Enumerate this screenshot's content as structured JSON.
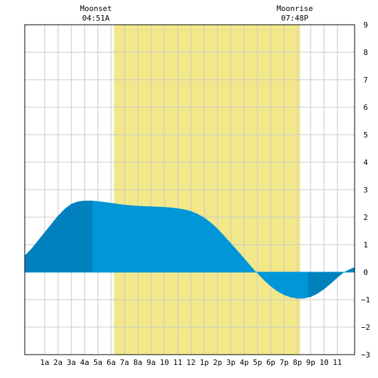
{
  "chart_data": {
    "type": "area",
    "moonset": {
      "label": "Moonset",
      "time": "04:51A",
      "hour": 4.85
    },
    "moonrise": {
      "label": "Moonrise",
      "time": "07:48P",
      "hour": 19.8
    },
    "daylight": {
      "start_hour": 6.2,
      "end_hour": 20.2
    },
    "xlim": [
      -0.5,
      24.3
    ],
    "ylim": [
      -3,
      9
    ],
    "x_ticks": [
      {
        "hour": 1,
        "label": "1a"
      },
      {
        "hour": 2,
        "label": "2a"
      },
      {
        "hour": 3,
        "label": "3a"
      },
      {
        "hour": 4,
        "label": "4a"
      },
      {
        "hour": 5,
        "label": "5a"
      },
      {
        "hour": 6,
        "label": "6a"
      },
      {
        "hour": 7,
        "label": "7a"
      },
      {
        "hour": 8,
        "label": "8a"
      },
      {
        "hour": 9,
        "label": "9a"
      },
      {
        "hour": 10,
        "label": "10"
      },
      {
        "hour": 11,
        "label": "11"
      },
      {
        "hour": 12,
        "label": "12"
      },
      {
        "hour": 13,
        "label": "1p"
      },
      {
        "hour": 14,
        "label": "2p"
      },
      {
        "hour": 15,
        "label": "3p"
      },
      {
        "hour": 16,
        "label": "4p"
      },
      {
        "hour": 17,
        "label": "5p"
      },
      {
        "hour": 18,
        "label": "6p"
      },
      {
        "hour": 19,
        "label": "7p"
      },
      {
        "hour": 20,
        "label": "8p"
      },
      {
        "hour": 21,
        "label": "9p"
      },
      {
        "hour": 22,
        "label": "10"
      },
      {
        "hour": 23,
        "label": "11"
      }
    ],
    "y_ticks": [
      9,
      8,
      7,
      6,
      5,
      4,
      3,
      2,
      1,
      0,
      -1,
      -2,
      -3
    ],
    "series": [
      {
        "x": [
          -0.5,
          0,
          0.5,
          1,
          1.5,
          2,
          2.5,
          3,
          3.5,
          4,
          4.5,
          5,
          5.5,
          6,
          6.5,
          7,
          7.5,
          8,
          8.5,
          9,
          9.5,
          10,
          10.5,
          11,
          11.5,
          12,
          12.5,
          13,
          13.5,
          14,
          14.5,
          15,
          15.5,
          16,
          16.5,
          17,
          17.5,
          18,
          18.5,
          19,
          19.5,
          20,
          20.5,
          21,
          21.5,
          22,
          22.5,
          23,
          23.5,
          24,
          24.3
        ],
        "values": [
          0.6,
          0.85,
          1.15,
          1.45,
          1.75,
          2.05,
          2.3,
          2.48,
          2.57,
          2.6,
          2.6,
          2.58,
          2.55,
          2.52,
          2.48,
          2.45,
          2.43,
          2.41,
          2.4,
          2.39,
          2.38,
          2.37,
          2.35,
          2.32,
          2.28,
          2.22,
          2.12,
          1.98,
          1.8,
          1.58,
          1.32,
          1.05,
          0.78,
          0.5,
          0.22,
          -0.05,
          -0.3,
          -0.52,
          -0.7,
          -0.83,
          -0.92,
          -0.96,
          -0.96,
          -0.9,
          -0.78,
          -0.62,
          -0.42,
          -0.2,
          0.0,
          0.12,
          0.18
        ]
      }
    ],
    "extremes": [
      {
        "hour": 4.6,
        "type": "high"
      },
      {
        "hour": 20.8,
        "type": "low"
      }
    ],
    "colors": {
      "daylight": "#f2e88a",
      "water": "#0096d8",
      "water_dark": "#0081be",
      "grid": "#c8c8c8",
      "frame": "#000000"
    }
  }
}
